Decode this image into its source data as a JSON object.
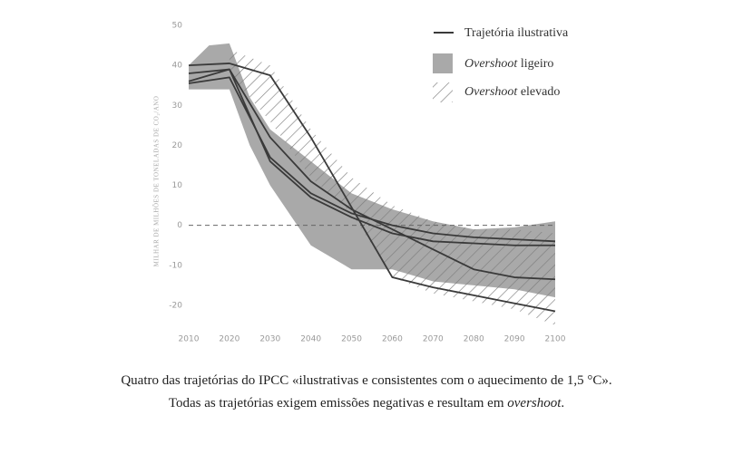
{
  "chart_data": {
    "type": "line",
    "y_label": "MILHAR DE MILHÕES DE TONELADAS DE CO₂/ANO",
    "xlim": [
      2010,
      2100
    ],
    "xticks": [
      2010,
      2020,
      2030,
      2040,
      2050,
      2060,
      2070,
      2080,
      2090,
      2100
    ],
    "ylim": [
      -25,
      50
    ],
    "yticks": [
      50,
      40,
      30,
      20,
      10,
      0,
      -10,
      -20
    ],
    "reference_line": 0,
    "x": [
      2010,
      2020,
      2030,
      2040,
      2050,
      2060,
      2070,
      2080,
      2090,
      2100
    ],
    "trajectories": {
      "name": "Trajetória ilustrativa",
      "color": "#3a3a3a",
      "lines": [
        [
          40,
          40.5,
          37.5,
          22,
          4.5,
          -13,
          -15.5,
          -17.5,
          -19.5,
          -21.5
        ],
        [
          36,
          39,
          22,
          11,
          4,
          -1,
          -6,
          -11,
          -13,
          -13.5
        ],
        [
          35.5,
          37,
          17,
          8,
          3,
          0,
          -2,
          -3,
          -3.5,
          -4
        ],
        [
          38,
          39,
          16,
          7,
          2,
          -2,
          -4,
          -4.5,
          -5,
          -5
        ]
      ]
    },
    "band_low": {
      "name_italic": "Overshoot",
      "name_rest": "ligeiro",
      "color": "#a9a9a9",
      "x": [
        2010,
        2015,
        2020,
        2025,
        2030,
        2040,
        2050,
        2060,
        2070,
        2080,
        2090,
        2100
      ],
      "upper": [
        40,
        45,
        45.5,
        32,
        24,
        16,
        8,
        4,
        1,
        -1,
        -0.5,
        1
      ],
      "lower": [
        34,
        34,
        34,
        20,
        10,
        -5,
        -11,
        -11,
        -14,
        -15,
        -16,
        -18
      ]
    },
    "band_high": {
      "name_italic": "Overshoot",
      "name_rest": "elevado",
      "color": "#8a8a8a",
      "x": [
        2020,
        2030,
        2040,
        2050,
        2060,
        2070,
        2080,
        2090,
        2100
      ],
      "upper": [
        44,
        40,
        24,
        12,
        5,
        1,
        -1,
        -1,
        -2
      ],
      "lower": [
        38,
        26,
        12,
        3,
        -13,
        -17,
        -19,
        -21,
        -25
      ]
    }
  },
  "caption": {
    "text": "Quatro das trajetórias do IPCC «ilustrativas e consistentes com o aquecimento de 1,5 °C». Todas as trajetórias exigem emissões negativas e resultam em",
    "italic": "overshoot",
    "end": "."
  }
}
